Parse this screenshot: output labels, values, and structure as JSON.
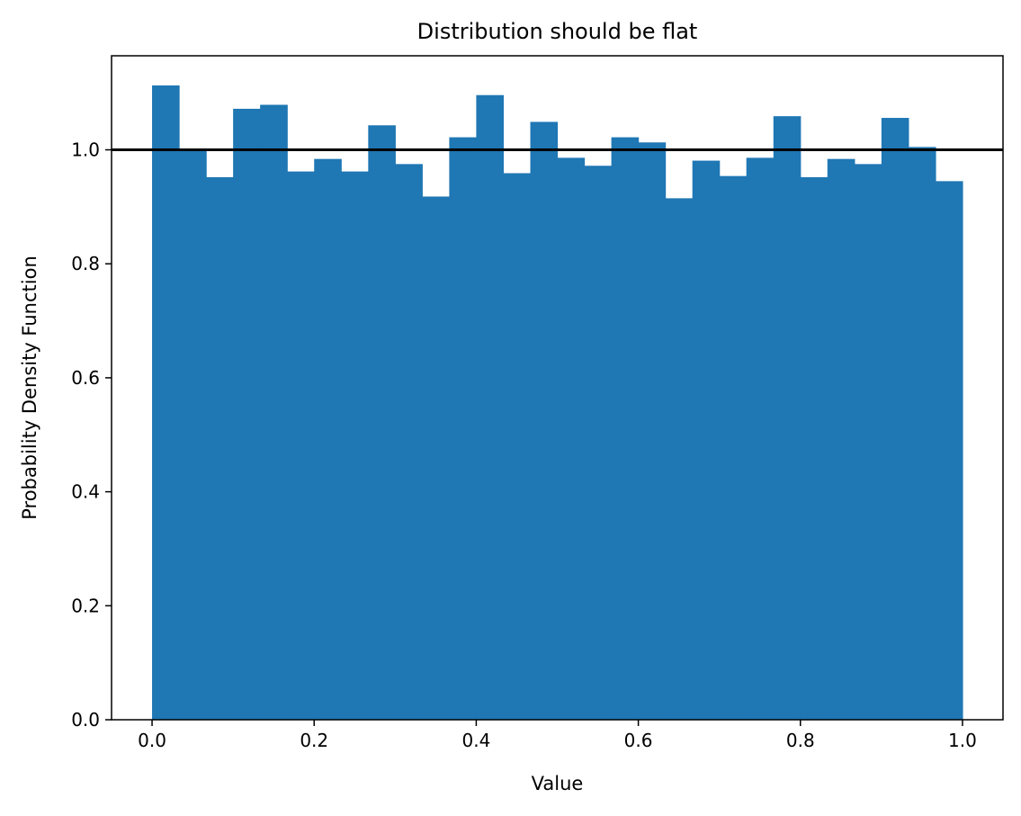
{
  "chart_data": {
    "type": "bar",
    "title": "Distribution should be flat",
    "xlabel": "Value",
    "ylabel": "Probability Density Function",
    "xlim": [
      -0.05,
      1.05
    ],
    "ylim": [
      0.0,
      1.165
    ],
    "grid": false,
    "bar_color": "#1f77b4",
    "x_ticks": [
      0.0,
      0.2,
      0.4,
      0.6,
      0.8,
      1.0
    ],
    "x_tick_labels": [
      "0.0",
      "0.2",
      "0.4",
      "0.6",
      "0.8",
      "1.0"
    ],
    "y_ticks": [
      0.0,
      0.2,
      0.4,
      0.6,
      0.8,
      1.0
    ],
    "y_tick_labels": [
      "0.0",
      "0.2",
      "0.4",
      "0.6",
      "0.8",
      "1.0"
    ],
    "bin_edges": [
      0.0,
      0.0333,
      0.0667,
      0.1,
      0.1333,
      0.1667,
      0.2,
      0.2333,
      0.2667,
      0.3,
      0.3333,
      0.3667,
      0.4,
      0.4333,
      0.4667,
      0.5,
      0.5333,
      0.5667,
      0.6,
      0.6333,
      0.6667,
      0.7,
      0.7333,
      0.7667,
      0.8,
      0.8333,
      0.8667,
      0.9,
      0.9333,
      0.9667,
      1.0
    ],
    "values": [
      1.113,
      1.0,
      0.952,
      1.072,
      1.079,
      0.962,
      0.984,
      0.962,
      1.043,
      0.975,
      0.918,
      1.022,
      1.096,
      0.959,
      1.049,
      0.986,
      0.972,
      1.022,
      1.013,
      0.915,
      0.981,
      0.954,
      0.986,
      1.059,
      0.952,
      0.984,
      0.975,
      1.056,
      1.005,
      0.945
    ],
    "reference_line": {
      "y": 1.0,
      "color": "#000000"
    }
  }
}
